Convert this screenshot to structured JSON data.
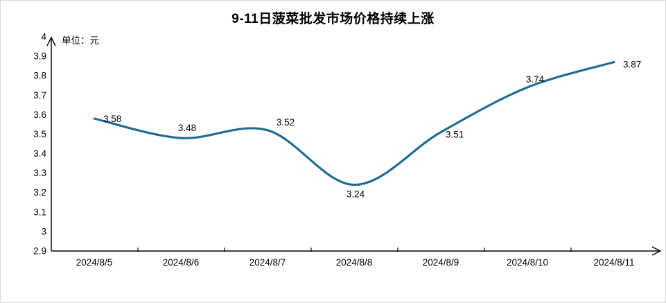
{
  "window": {
    "background": "#ffffff",
    "border_color": "#d6d6d6"
  },
  "chart": {
    "title": "9-11日菠菜批发市场价格持续上涨",
    "unit_label": "单位：元"
  },
  "chart_data": {
    "type": "line",
    "title": "9-11日菠菜批发市场价格持续上涨",
    "unit_label": "单位：元",
    "categories": [
      "2024/8/5",
      "2024/8/6",
      "2024/8/7",
      "2024/8/8",
      "2024/8/9",
      "2024/8/10",
      "2024/8/11"
    ],
    "series": [
      {
        "values": [
          3.58,
          3.48,
          3.52,
          3.24,
          3.51,
          3.74,
          3.87
        ]
      }
    ],
    "data_labels": [
      "3.58",
      "3.48",
      "3.52",
      "3.24",
      "3.51",
      "3.74",
      "3.87"
    ],
    "y_ticks": [
      "4",
      "3.9",
      "3.8",
      "3.7",
      "3.6",
      "3.5",
      "3.4",
      "3.3",
      "3.2",
      "3.1",
      "3",
      "2.9"
    ],
    "ylim": [
      2.9,
      4.0
    ],
    "smooth": true,
    "grid": false,
    "legend": "none",
    "line_color": "#1f6b93",
    "axis_color": "#000000",
    "label_color": "#000000"
  }
}
